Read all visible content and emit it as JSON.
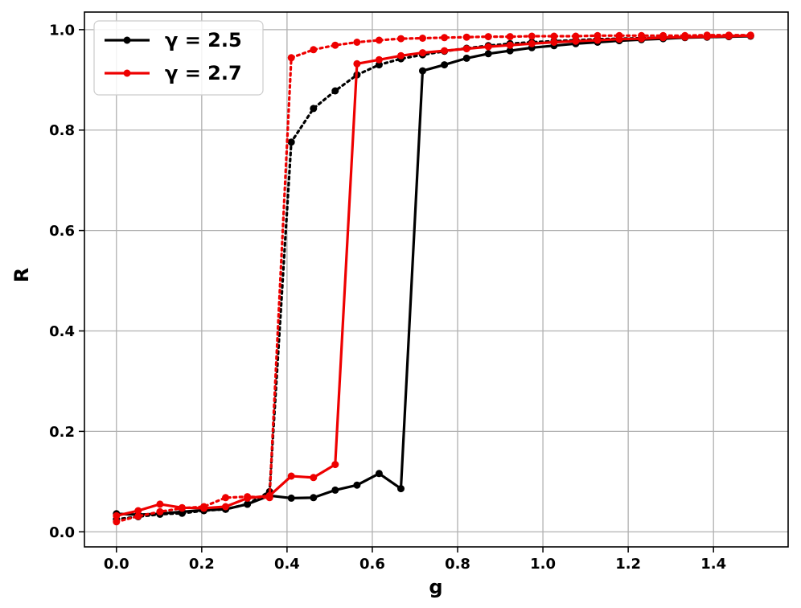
{
  "chart_data": {
    "type": "line",
    "xlabel": "g",
    "ylabel": "R",
    "xlim": [
      -0.075,
      1.575
    ],
    "ylim": [
      -0.03,
      1.035
    ],
    "xticks": [
      0.0,
      0.2,
      0.4,
      0.6,
      0.8,
      1.0,
      1.2,
      1.4
    ],
    "xtick_labels": [
      "0.0",
      "0.2",
      "0.4",
      "0.6",
      "0.8",
      "1.0",
      "1.2",
      "1.4"
    ],
    "yticks": [
      0.0,
      0.2,
      0.4,
      0.6,
      0.8,
      1.0
    ],
    "ytick_labels": [
      "0.0",
      "0.2",
      "0.4",
      "0.6",
      "0.8",
      "1.0"
    ],
    "grid": true,
    "legend_position": "top-left",
    "legend": [
      "γ = 2.5",
      "γ = 2.7"
    ],
    "series": [
      {
        "name": "γ = 2.5",
        "color": "#000000",
        "linestyle": "solid",
        "x": [
          0.0,
          0.051,
          0.102,
          0.154,
          0.205,
          0.256,
          0.307,
          0.359,
          0.41,
          0.462,
          0.513,
          0.564,
          0.616,
          0.667,
          0.718,
          0.769,
          0.821,
          0.872,
          0.923,
          0.974,
          1.026,
          1.077,
          1.128,
          1.179,
          1.231,
          1.282,
          1.333,
          1.385,
          1.436,
          1.487
        ],
        "y": [
          0.036,
          0.034,
          0.036,
          0.04,
          0.043,
          0.045,
          0.055,
          0.072,
          0.067,
          0.068,
          0.083,
          0.093,
          0.116,
          0.086,
          0.918,
          0.93,
          0.943,
          0.952,
          0.958,
          0.964,
          0.968,
          0.972,
          0.975,
          0.978,
          0.98,
          0.982,
          0.984,
          0.985,
          0.986,
          0.987
        ]
      },
      {
        "name": "",
        "color": "#000000",
        "linestyle": "dotted",
        "x": [
          0.0,
          0.051,
          0.102,
          0.154,
          0.205,
          0.256,
          0.307,
          0.359,
          0.41,
          0.462,
          0.513,
          0.564,
          0.616,
          0.667,
          0.718,
          0.769,
          0.821,
          0.872,
          0.923,
          0.974,
          1.026,
          1.077,
          1.128,
          1.179,
          1.231,
          1.282,
          1.333,
          1.385,
          1.436,
          1.487
        ],
        "y": [
          0.025,
          0.03,
          0.035,
          0.037,
          0.042,
          0.045,
          0.055,
          0.08,
          0.776,
          0.843,
          0.878,
          0.91,
          0.93,
          0.942,
          0.95,
          0.957,
          0.963,
          0.968,
          0.972,
          0.975,
          0.977,
          0.979,
          0.981,
          0.982,
          0.983,
          0.984,
          0.985,
          0.986,
          0.987,
          0.988
        ]
      },
      {
        "name": "γ = 2.7",
        "color": "#ee0000",
        "linestyle": "solid",
        "x": [
          0.0,
          0.051,
          0.102,
          0.154,
          0.205,
          0.256,
          0.307,
          0.359,
          0.41,
          0.462,
          0.513,
          0.564,
          0.616,
          0.667,
          0.718,
          0.769,
          0.821,
          0.872,
          0.923,
          0.974,
          1.026,
          1.077,
          1.128,
          1.179,
          1.231,
          1.282,
          1.333,
          1.385,
          1.436,
          1.487
        ],
        "y": [
          0.032,
          0.042,
          0.055,
          0.048,
          0.047,
          0.05,
          0.067,
          0.072,
          0.111,
          0.108,
          0.134,
          0.932,
          0.94,
          0.948,
          0.954,
          0.958,
          0.962,
          0.966,
          0.969,
          0.972,
          0.975,
          0.977,
          0.979,
          0.981,
          0.982,
          0.984,
          0.985,
          0.986,
          0.987,
          0.988
        ]
      },
      {
        "name": "",
        "color": "#ee0000",
        "linestyle": "dotted",
        "x": [
          0.0,
          0.051,
          0.102,
          0.154,
          0.205,
          0.256,
          0.307,
          0.359,
          0.41,
          0.462,
          0.513,
          0.564,
          0.616,
          0.667,
          0.718,
          0.769,
          0.821,
          0.872,
          0.923,
          0.974,
          1.026,
          1.077,
          1.128,
          1.179,
          1.231,
          1.282,
          1.333,
          1.385,
          1.436,
          1.487
        ],
        "y": [
          0.02,
          0.031,
          0.04,
          0.047,
          0.05,
          0.068,
          0.07,
          0.068,
          0.944,
          0.96,
          0.969,
          0.975,
          0.979,
          0.982,
          0.983,
          0.984,
          0.985,
          0.986,
          0.986,
          0.987,
          0.987,
          0.987,
          0.988,
          0.988,
          0.988,
          0.988,
          0.988,
          0.989,
          0.989,
          0.989
        ]
      }
    ]
  }
}
